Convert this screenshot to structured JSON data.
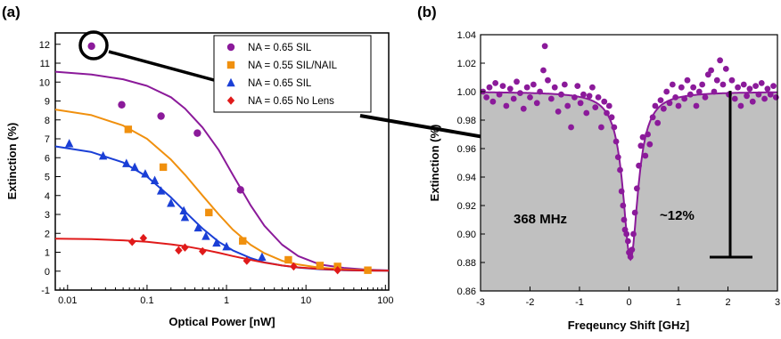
{
  "chart_data": [
    {
      "panel_label": "(a)",
      "type": "scatter",
      "xscale": "log",
      "xlabel": "Optical Power [nW]",
      "ylabel": "Extinction (%)",
      "xlim": [
        0.007,
        110
      ],
      "ylim": [
        -1,
        12.6
      ],
      "x_ticks": [
        0.01,
        0.1,
        1,
        10,
        100
      ],
      "x_tick_labels": [
        "0.01",
        "0.1",
        "1",
        "10",
        "100"
      ],
      "y_ticks": [
        -1,
        0,
        1,
        2,
        3,
        4,
        5,
        6,
        7,
        8,
        9,
        10,
        11,
        12
      ],
      "y_tick_labels": [
        "-1",
        "0",
        "1",
        "2",
        "3",
        "4",
        "5",
        "6",
        "7",
        "8",
        "9",
        "10",
        "11",
        "12"
      ],
      "legend_position": "top-right",
      "series": [
        {
          "name": "NA = 0.65 SIL",
          "color": "#8B1A9A",
          "marker": "circle",
          "points": [
            [
              0.02,
              11.9
            ],
            [
              0.048,
              8.8
            ],
            [
              0.15,
              8.2
            ],
            [
              0.43,
              7.3
            ],
            [
              1.5,
              4.3
            ]
          ],
          "fit": [
            [
              0.007,
              10.55
            ],
            [
              0.02,
              10.4
            ],
            [
              0.05,
              10.15
            ],
            [
              0.1,
              9.8
            ],
            [
              0.2,
              9.2
            ],
            [
              0.3,
              8.6
            ],
            [
              0.5,
              7.6
            ],
            [
              0.8,
              6.4
            ],
            [
              1.2,
              5.1
            ],
            [
              2,
              3.5
            ],
            [
              3,
              2.4
            ],
            [
              5,
              1.4
            ],
            [
              8,
              0.8
            ],
            [
              15,
              0.35
            ],
            [
              30,
              0.17
            ],
            [
              60,
              0.08
            ],
            [
              110,
              0.04
            ]
          ]
        },
        {
          "name": "NA = 0.55 SIL/NAIL",
          "color": "#F0900E",
          "marker": "square",
          "points": [
            [
              0.058,
              7.5
            ],
            [
              0.16,
              5.5
            ],
            [
              0.6,
              3.1
            ],
            [
              1.6,
              1.6
            ],
            [
              6,
              0.6
            ],
            [
              15,
              0.3
            ],
            [
              25,
              0.25
            ],
            [
              60,
              0.05
            ]
          ],
          "fit": [
            [
              0.007,
              8.55
            ],
            [
              0.02,
              8.25
            ],
            [
              0.05,
              7.7
            ],
            [
              0.1,
              7.0
            ],
            [
              0.2,
              5.9
            ],
            [
              0.3,
              5.1
            ],
            [
              0.5,
              4.0
            ],
            [
              0.8,
              3.0
            ],
            [
              1.2,
              2.2
            ],
            [
              2,
              1.4
            ],
            [
              3,
              0.95
            ],
            [
              5,
              0.55
            ],
            [
              8,
              0.35
            ],
            [
              15,
              0.18
            ],
            [
              30,
              0.09
            ],
            [
              60,
              0.05
            ],
            [
              110,
              0.03
            ]
          ]
        },
        {
          "name": "NA = 0.65 SIL",
          "color": "#1A3FD6",
          "marker": "triangle",
          "points": [
            [
              0.0105,
              6.75
            ],
            [
              0.028,
              6.1
            ],
            [
              0.055,
              5.7
            ],
            [
              0.07,
              5.5
            ],
            [
              0.095,
              5.15
            ],
            [
              0.125,
              4.8
            ],
            [
              0.15,
              4.25
            ],
            [
              0.2,
              3.6
            ],
            [
              0.29,
              3.2
            ],
            [
              0.3,
              2.85
            ],
            [
              0.44,
              2.3
            ],
            [
              0.55,
              1.85
            ],
            [
              0.75,
              1.5
            ],
            [
              1.0,
              1.3
            ],
            [
              2.8,
              0.75
            ]
          ],
          "fit": [
            [
              0.007,
              6.6
            ],
            [
              0.02,
              6.3
            ],
            [
              0.05,
              5.75
            ],
            [
              0.1,
              5.0
            ],
            [
              0.2,
              3.9
            ],
            [
              0.3,
              3.15
            ],
            [
              0.5,
              2.25
            ],
            [
              0.8,
              1.55
            ],
            [
              1.2,
              1.1
            ],
            [
              2,
              0.7
            ],
            [
              3,
              0.47
            ],
            [
              5,
              0.3
            ],
            [
              8,
              0.19
            ],
            [
              15,
              0.1
            ],
            [
              30,
              0.05
            ],
            [
              60,
              0.03
            ],
            [
              110,
              0.02
            ]
          ]
        },
        {
          "name": "NA = 0.65 No Lens",
          "color": "#E01A1A",
          "marker": "diamond",
          "points": [
            [
              0.065,
              1.55
            ],
            [
              0.09,
              1.75
            ],
            [
              0.25,
              1.1
            ],
            [
              0.3,
              1.25
            ],
            [
              0.5,
              1.05
            ],
            [
              1.8,
              0.55
            ],
            [
              7,
              0.25
            ],
            [
              25,
              0.05
            ]
          ],
          "fit": [
            [
              0.007,
              1.72
            ],
            [
              0.02,
              1.69
            ],
            [
              0.05,
              1.63
            ],
            [
              0.1,
              1.55
            ],
            [
              0.2,
              1.42
            ],
            [
              0.3,
              1.32
            ],
            [
              0.5,
              1.15
            ],
            [
              0.8,
              0.97
            ],
            [
              1.2,
              0.8
            ],
            [
              2,
              0.6
            ],
            [
              3,
              0.45
            ],
            [
              5,
              0.3
            ],
            [
              8,
              0.2
            ],
            [
              15,
              0.12
            ],
            [
              30,
              0.06
            ],
            [
              60,
              0.03
            ],
            [
              110,
              0.02
            ]
          ]
        }
      ]
    },
    {
      "panel_label": "(b)",
      "type": "scatter",
      "xlabel": "Freqeuncy Shift [GHz]",
      "ylabel": "Extinction (%)",
      "xlim": [
        -3,
        3
      ],
      "ylim": [
        0.86,
        1.04
      ],
      "x_ticks": [
        -3,
        -2,
        -1,
        0,
        1,
        2,
        3
      ],
      "x_tick_labels": [
        "-3",
        "-2",
        "-1",
        "0",
        "1",
        "2",
        "3"
      ],
      "y_ticks": [
        0.86,
        0.88,
        0.9,
        0.92,
        0.94,
        0.96,
        0.98,
        1.0,
        1.02,
        1.04
      ],
      "y_tick_labels": [
        "0.86",
        "0.88",
        "0.90",
        "0.92",
        "0.94",
        "0.96",
        "0.98",
        "1.00",
        "1.02",
        "1.04"
      ],
      "fill_color": "#C0C0C0",
      "series": [
        {
          "name": "",
          "color": "#8B1A9A",
          "marker": "circle",
          "points": [
            [
              -2.95,
              1.0
            ],
            [
              -2.88,
              0.996
            ],
            [
              -2.82,
              1.003
            ],
            [
              -2.75,
              0.993
            ],
            [
              -2.7,
              1.006
            ],
            [
              -2.62,
              0.998
            ],
            [
              -2.55,
              1.004
            ],
            [
              -2.48,
              0.99
            ],
            [
              -2.4,
              1.002
            ],
            [
              -2.33,
              0.995
            ],
            [
              -2.27,
              1.007
            ],
            [
              -2.2,
              0.999
            ],
            [
              -2.13,
              0.988
            ],
            [
              -2.06,
              1.003
            ],
            [
              -2.0,
              0.996
            ],
            [
              -1.93,
              1.005
            ],
            [
              -1.86,
              0.992
            ],
            [
              -1.8,
              1.0
            ],
            [
              -1.73,
              1.015
            ],
            [
              -1.7,
              1.032
            ],
            [
              -1.64,
              1.008
            ],
            [
              -1.57,
              0.995
            ],
            [
              -1.5,
              1.003
            ],
            [
              -1.43,
              0.986
            ],
            [
              -1.37,
              0.998
            ],
            [
              -1.3,
              1.005
            ],
            [
              -1.24,
              0.99
            ],
            [
              -1.17,
              0.975
            ],
            [
              -1.1,
              0.996
            ],
            [
              -1.04,
              1.004
            ],
            [
              -0.98,
              0.992
            ],
            [
              -0.92,
              0.998
            ],
            [
              -0.86,
              0.985
            ],
            [
              -0.8,
              0.997
            ],
            [
              -0.74,
              1.003
            ],
            [
              -0.68,
              0.989
            ],
            [
              -0.62,
              0.996
            ],
            [
              -0.56,
              0.975
            ],
            [
              -0.5,
              0.993
            ],
            [
              -0.45,
              0.985
            ],
            [
              -0.4,
              0.99
            ],
            [
              -0.35,
              0.982
            ],
            [
              -0.3,
              0.975
            ],
            [
              -0.26,
              0.965
            ],
            [
              -0.22,
              0.954
            ],
            [
              -0.18,
              0.945
            ],
            [
              -0.15,
              0.93
            ],
            [
              -0.12,
              0.92
            ],
            [
              -0.1,
              0.91
            ],
            [
              -0.08,
              0.903
            ],
            [
              -0.05,
              0.9
            ],
            [
              -0.02,
              0.895
            ],
            [
              0.0,
              0.887
            ],
            [
              0.03,
              0.884
            ],
            [
              0.06,
              0.889
            ],
            [
              0.09,
              0.9
            ],
            [
              0.12,
              0.915
            ],
            [
              0.16,
              0.932
            ],
            [
              0.2,
              0.948
            ],
            [
              0.24,
              0.962
            ],
            [
              0.28,
              0.968
            ],
            [
              0.33,
              0.955
            ],
            [
              0.38,
              0.97
            ],
            [
              0.42,
              0.963
            ],
            [
              0.48,
              0.982
            ],
            [
              0.53,
              0.99
            ],
            [
              0.58,
              0.978
            ],
            [
              0.64,
              0.994
            ],
            [
              0.7,
              0.988
            ],
            [
              0.76,
              1.0
            ],
            [
              0.82,
              0.992
            ],
            [
              0.88,
              1.005
            ],
            [
              0.94,
              0.996
            ],
            [
              1.0,
              0.99
            ],
            [
              1.06,
              1.003
            ],
            [
              1.12,
              0.995
            ],
            [
              1.18,
              1.008
            ],
            [
              1.24,
              0.998
            ],
            [
              1.3,
              1.003
            ],
            [
              1.36,
              0.99
            ],
            [
              1.42,
              1.0
            ],
            [
              1.48,
              1.005
            ],
            [
              1.54,
              0.996
            ],
            [
              1.6,
              1.012
            ],
            [
              1.66,
              1.015
            ],
            [
              1.72,
              1.0
            ],
            [
              1.78,
              1.008
            ],
            [
              1.84,
              1.022
            ],
            [
              1.9,
              1.005
            ],
            [
              1.96,
              1.016
            ],
            [
              2.02,
              0.998
            ],
            [
              2.08,
              1.008
            ],
            [
              2.14,
              0.995
            ],
            [
              2.2,
              1.003
            ],
            [
              2.26,
              0.99
            ],
            [
              2.32,
              1.005
            ],
            [
              2.38,
              0.997
            ],
            [
              2.44,
              1.002
            ],
            [
              2.5,
              0.993
            ],
            [
              2.56,
              1.004
            ],
            [
              2.62,
              0.998
            ],
            [
              2.68,
              1.006
            ],
            [
              2.74,
              0.995
            ],
            [
              2.8,
              1.002
            ],
            [
              2.86,
              0.998
            ],
            [
              2.92,
              1.004
            ],
            [
              2.97,
              0.996
            ]
          ],
          "fit_center": 0.03,
          "fit_fwhm": 0.368,
          "fit_baseline": 1.0,
          "fit_depth": 0.118
        }
      ],
      "annotations": [
        "368 MHz",
        "~12%"
      ]
    }
  ],
  "legend": {
    "entries": [
      "NA = 0.65 SIL",
      "NA = 0.55 SIL/NAIL",
      "NA = 0.65 SIL",
      "NA = 0.65 No Lens"
    ]
  }
}
